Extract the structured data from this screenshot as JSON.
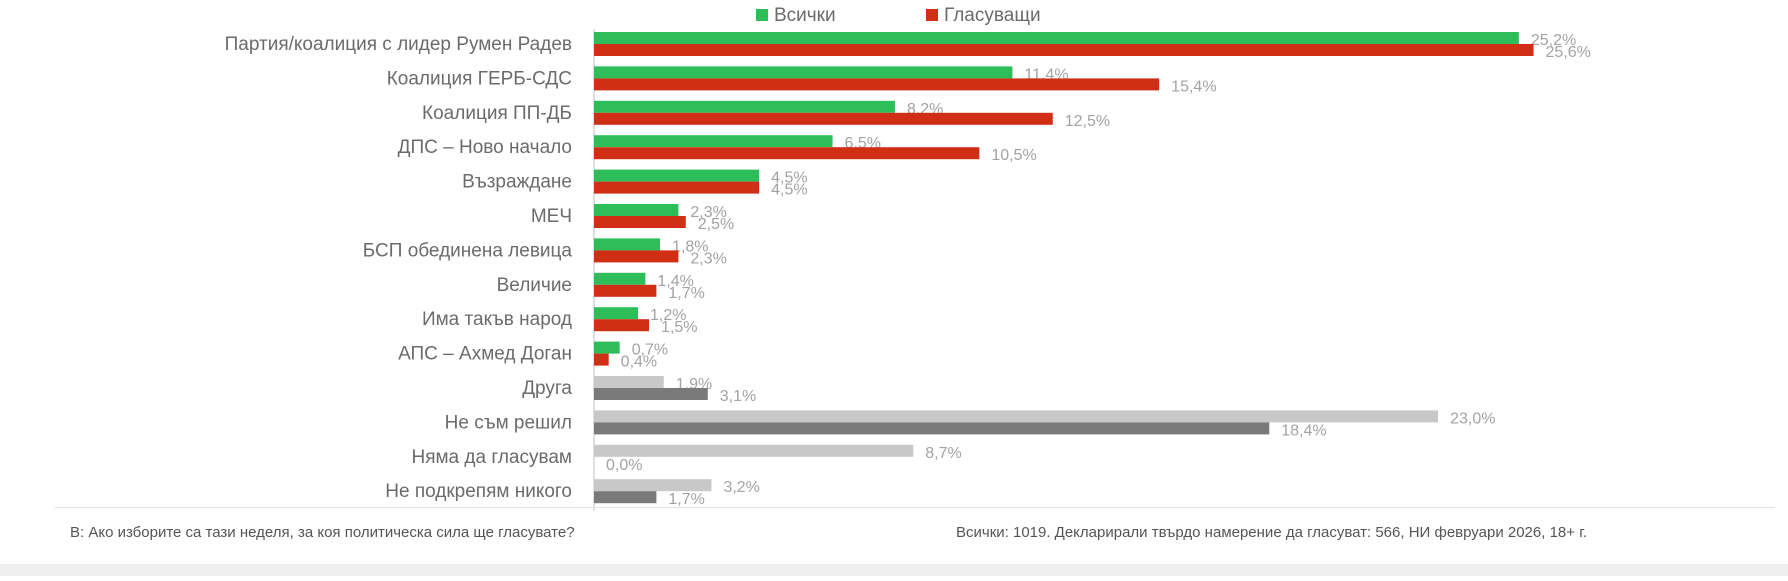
{
  "chart_data": {
    "type": "bar",
    "orientation": "horizontal",
    "categories": [
      "Партия/коалиция с лидер Румен Радев",
      "Коалиция ГЕРБ-СДС",
      "Коалиция ПП-ДБ",
      "ДПС – Ново начало",
      "Възраждане",
      "МЕЧ",
      "БСП обединена левица",
      "Величие",
      "Има такъв народ",
      "АПС – Ахмед Доган",
      "Друга",
      "Не съм решил",
      "Няма да гласувам",
      "Не подкрепям никого"
    ],
    "series": [
      {
        "name": "Всички",
        "color": "#2dbe5a",
        "values": [
          25.2,
          11.4,
          8.2,
          6.5,
          4.5,
          2.3,
          1.8,
          1.4,
          1.2,
          0.7,
          1.9,
          23.0,
          8.7,
          3.2
        ],
        "labels": [
          "25,2%",
          "11,4%",
          "8,2%",
          "6,5%",
          "4,5%",
          "2,3%",
          "1,8%",
          "1,4%",
          "1,2%",
          "0,7%",
          "1,9%",
          "23,0%",
          "8,7%",
          "3,2%"
        ]
      },
      {
        "name": "Гласуващи",
        "color": "#d02f16",
        "values": [
          25.6,
          15.4,
          12.5,
          10.5,
          4.5,
          2.5,
          2.3,
          1.7,
          1.5,
          0.4,
          3.1,
          18.4,
          0.0,
          1.7
        ],
        "labels": [
          "25,6%",
          "15,4%",
          "12,5%",
          "10,5%",
          "4,5%",
          "2,5%",
          "2,3%",
          "1,7%",
          "1,5%",
          "0,4%",
          "3,1%",
          "18,4%",
          "0,0%",
          "1,7%"
        ]
      }
    ],
    "neutral_categories_from_index": 10,
    "neutral_colors": {
      "Всички": "#c8c8c8",
      "Гласуващи": "#7a7a7a"
    },
    "xlim": [
      0,
      26
    ],
    "grid": false,
    "legend_placement": "top"
  },
  "footer": {
    "question": "В: Ако изборите са тази неделя, за коя политическа сила ще гласувате?",
    "sample": "Всички: 1019. Декларирали твърдо намерение да гласуват: 566, НИ февруари 2026, 18+ г."
  },
  "colors": {
    "label_text": "#6b6b6b",
    "value_text": "#a3a3a3",
    "axis": "#bfbfbf"
  }
}
